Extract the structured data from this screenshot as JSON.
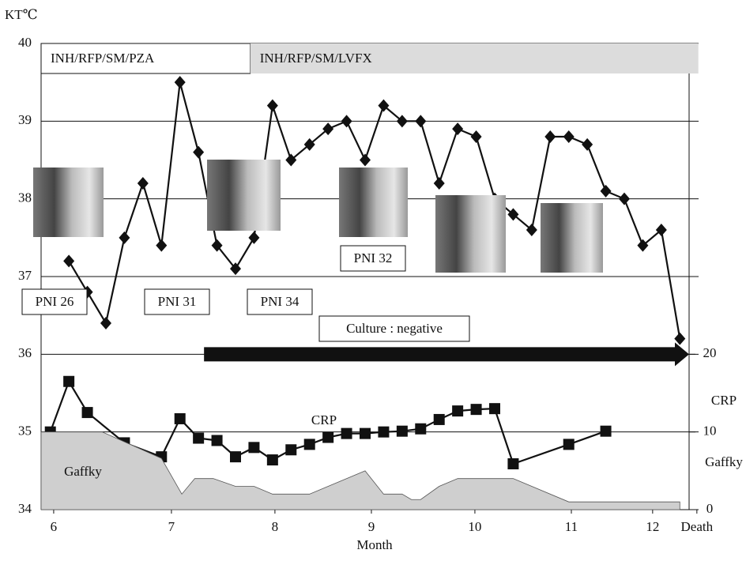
{
  "chart_data": {
    "type": "line",
    "ylabel": "KT℃",
    "xlabel": "Month",
    "xlim": [
      0,
      35
    ],
    "xticks": [
      {
        "value": 0.68,
        "label": "6"
      },
      {
        "value": 7.04,
        "label": "7"
      },
      {
        "value": 12.63,
        "label": "8"
      },
      {
        "value": 17.84,
        "label": "9"
      },
      {
        "value": 23.43,
        "label": "10"
      },
      {
        "value": 28.64,
        "label": "11"
      },
      {
        "value": 33.03,
        "label": "12"
      },
      {
        "value": 35.42,
        "label": "Death"
      }
    ],
    "ylim": [
      34,
      40
    ],
    "yticks": [
      34,
      35,
      36,
      37,
      38,
      39,
      40
    ],
    "y2lim": [
      0,
      60
    ],
    "y2ticks": [
      0,
      10,
      20
    ],
    "y2label": "CRP",
    "grid": true,
    "regimens": [
      {
        "label": "INH/RFP/SM/PZA",
        "start": 0,
        "end": 11.3,
        "color": "#ffffff"
      },
      {
        "label": "INH/RFP/SM/LVFX",
        "start": 11.3,
        "end": 35.5,
        "color": "#dcdcdc"
      }
    ],
    "culture": {
      "label": "Culture : negative",
      "x": [
        8.8,
        35
      ],
      "y2": 20
    },
    "annotations": [
      "PNI 26",
      "PNI 31",
      "PNI 34",
      "PNI 32"
    ],
    "series": [
      {
        "marker": "diamond",
        "color": "#111111",
        "x": [
          1.5,
          2.5,
          3.5,
          4.5,
          5.5,
          6.5,
          7.5,
          8.5,
          9.5,
          10.5,
          11.5,
          12.5,
          13.5,
          14.5,
          15.5,
          16.5,
          17.5,
          18.5,
          19.5,
          20.5,
          21.5,
          22.5,
          23.5,
          24.5,
          25.5,
          26.5,
          27.5,
          28.5,
          29.5,
          30.5,
          31.5,
          32.5,
          33.5,
          34.5
        ],
        "values": [
          37.2,
          36.8,
          36.4,
          37.5,
          38.2,
          37.4,
          39.5,
          38.6,
          37.4,
          37.1,
          37.5,
          39.2,
          38.5,
          38.7,
          38.9,
          39.0,
          38.5,
          39.2,
          39.0,
          39.0,
          38.2,
          38.9,
          38.8,
          38.0,
          37.8,
          37.6,
          38.8,
          38.8,
          38.7,
          38.1,
          38.0,
          37.4,
          37.6,
          36.2
        ]
      },
      {
        "name": "CRP",
        "marker": "square",
        "axis": "y2",
        "color": "#111111",
        "x": [
          0.5,
          1.5,
          2.5,
          4.5,
          6.5,
          7.5,
          8.5,
          9.5,
          10.5,
          11.5,
          12.5,
          13.5,
          14.5,
          15.5,
          16.5,
          17.5,
          18.5,
          19.5,
          20.5,
          21.5,
          22.5,
          23.5,
          24.5,
          25.5,
          28.5,
          30.5
        ],
        "values": [
          10,
          16.5,
          12.5,
          8.6,
          6.8,
          11.7,
          9.2,
          8.9,
          6.8,
          8.0,
          6.4,
          7.7,
          8.4,
          9.3,
          9.8,
          9.8,
          10.0,
          10.1,
          10.4,
          11.6,
          12.7,
          12.9,
          13.0,
          5.9,
          8.4,
          10.1
        ]
      },
      {
        "name": "Gaffky",
        "kind": "area",
        "axis": "y2",
        "color": "#cfcfcf",
        "x": [
          0,
          3.3,
          6.5,
          7.6,
          8.3,
          9.3,
          10.5,
          11.5,
          12.5,
          14.5,
          17.5,
          18.5,
          19.5,
          20.0,
          20.5,
          21.5,
          22.5,
          25.5,
          28.5,
          34.5
        ],
        "values": [
          10,
          10,
          6.6,
          2,
          4,
          4,
          3,
          3,
          2,
          2,
          5,
          2,
          2,
          1.3,
          1.3,
          3,
          4,
          4,
          1,
          1
        ]
      }
    ]
  }
}
